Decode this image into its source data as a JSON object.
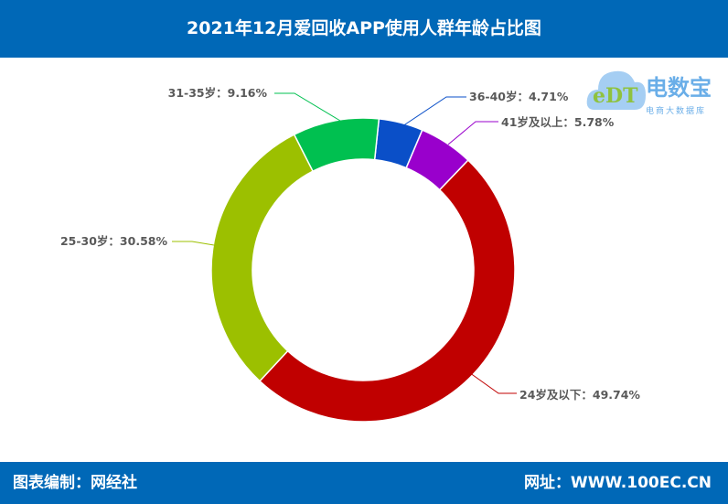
{
  "header": {
    "title": "2021年12月爱回收APP使用人群年龄占比图"
  },
  "footer": {
    "left": "图表编制：网经社",
    "right": "网址：WWW.100EC.CN"
  },
  "logo": {
    "brand": "电数宝",
    "sub": "电商大数据库",
    "mark": "eDT"
  },
  "chart_data": {
    "type": "pie",
    "donut": true,
    "title": "2021年12月爱回收APP使用人群年龄占比图",
    "categories": [
      "36-40岁",
      "41岁及以上",
      "24岁及以下",
      "25-30岁",
      "31-35岁"
    ],
    "values": [
      4.71,
      5.78,
      49.74,
      30.58,
      9.16
    ],
    "labels": [
      "36-40岁：4.71%",
      "41岁及以上：5.78%",
      "24岁及以下：49.74%",
      "25-30岁：30.58%",
      "31-35岁：9.16%"
    ],
    "colors": [
      "#0a4fc8",
      "#9900cc",
      "#c00000",
      "#9cc000",
      "#00c050"
    ]
  }
}
